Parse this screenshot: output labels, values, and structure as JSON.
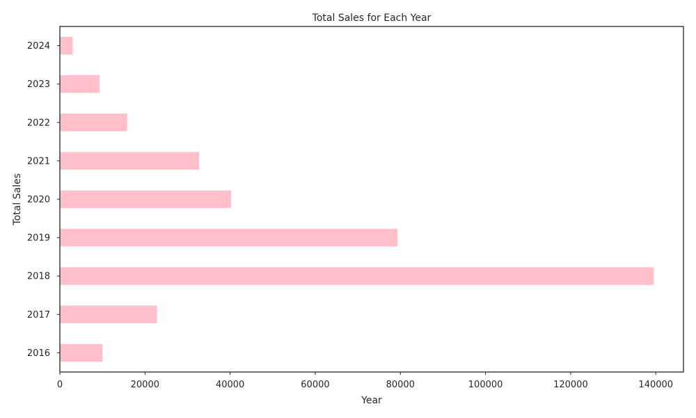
{
  "chart_data": {
    "type": "bar",
    "orientation": "horizontal",
    "title": "Total Sales for Each Year",
    "xlabel": "Year",
    "ylabel": "Total Sales",
    "categories": [
      "2016",
      "2017",
      "2018",
      "2019",
      "2020",
      "2021",
      "2022",
      "2023",
      "2024"
    ],
    "values": [
      10000,
      22800,
      139500,
      79300,
      40200,
      32700,
      15800,
      9300,
      3000
    ],
    "xlim": [
      0,
      146500
    ],
    "xticks": [
      0,
      20000,
      40000,
      60000,
      80000,
      100000,
      120000,
      140000
    ],
    "grid": false,
    "legend": "none",
    "colors": {
      "bar": "#ffc0cb",
      "text": "#262626",
      "axis": "#262626",
      "background": "#ffffff"
    }
  }
}
